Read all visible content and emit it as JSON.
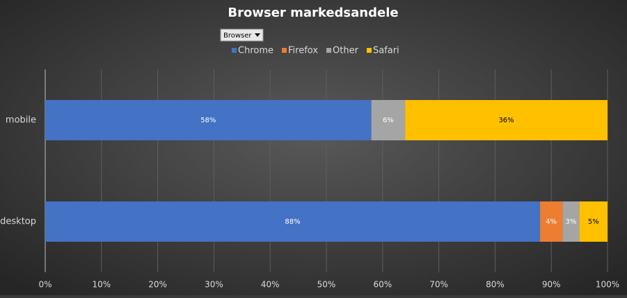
{
  "chart_data": {
    "type": "stacked-bar-horizontal",
    "title": "Browser markedsandele",
    "filter_button": "Browser",
    "categories": [
      "mobile",
      "desktop"
    ],
    "series": [
      {
        "name": "Chrome",
        "color": "#4472c4",
        "values": [
          58,
          88
        ],
        "value_labels": [
          "58%",
          "88%"
        ],
        "label_color": "#ffffff"
      },
      {
        "name": "Firefox",
        "color": "#ed7d31",
        "values": [
          null,
          4
        ],
        "value_labels": [
          null,
          "4%"
        ],
        "label_color": "#ffffff"
      },
      {
        "name": "Other",
        "color": "#a5a5a5",
        "values": [
          6,
          3
        ],
        "value_labels": [
          "6%",
          "3%"
        ],
        "label_color": "#ffffff"
      },
      {
        "name": "Safari",
        "color": "#ffc000",
        "values": [
          36,
          5
        ],
        "value_labels": [
          "36%",
          "5%"
        ],
        "label_color": "#000000"
      }
    ],
    "xlim": [
      0,
      100
    ],
    "xticks": [
      {
        "value": 0,
        "label": "0%"
      },
      {
        "value": 10,
        "label": "10%"
      },
      {
        "value": 20,
        "label": "20%"
      },
      {
        "value": 30,
        "label": "30%"
      },
      {
        "value": 40,
        "label": "40%"
      },
      {
        "value": 50,
        "label": "50%"
      },
      {
        "value": 60,
        "label": "60%"
      },
      {
        "value": 70,
        "label": "70%"
      },
      {
        "value": 80,
        "label": "80%"
      },
      {
        "value": 90,
        "label": "90%"
      },
      {
        "value": 100,
        "label": "100%"
      }
    ],
    "grid": true,
    "legend": "top"
  }
}
